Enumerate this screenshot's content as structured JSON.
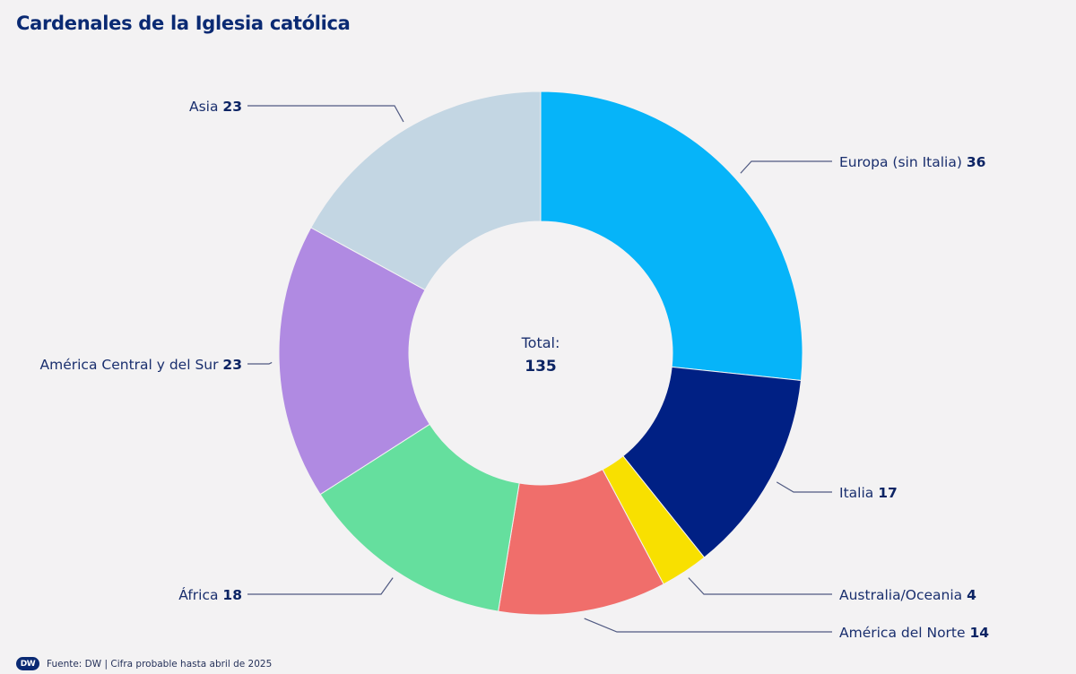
{
  "title": "Cardenales de la Iglesia católica",
  "footer": {
    "logo": "DW",
    "source": "Fuente: DW | Cifra probable hasta abril de 2025"
  },
  "chart_data": {
    "type": "pie",
    "subtype": "donut",
    "title": "Cardenales de la Iglesia católica",
    "center_label": "Total:",
    "center_value": "135",
    "total": 135,
    "start": "top",
    "direction": "clockwise",
    "slices": [
      {
        "label": "Europa (sin Italia)",
        "value": 36,
        "color": "#06b4f9"
      },
      {
        "label": "Italia",
        "value": 17,
        "color": "#002084"
      },
      {
        "label": "Australia/Oceania",
        "value": 4,
        "color": "#f8e000"
      },
      {
        "label": "América del Norte",
        "value": 14,
        "color": "#f06e6b"
      },
      {
        "label": "África",
        "value": 18,
        "color": "#65df9e"
      },
      {
        "label": "América Central y del Sur",
        "value": 23,
        "color": "#b08ae2"
      },
      {
        "label": "Asia",
        "value": 23,
        "color": "#c3d6e3"
      }
    ],
    "legend": "leader-line labels"
  }
}
